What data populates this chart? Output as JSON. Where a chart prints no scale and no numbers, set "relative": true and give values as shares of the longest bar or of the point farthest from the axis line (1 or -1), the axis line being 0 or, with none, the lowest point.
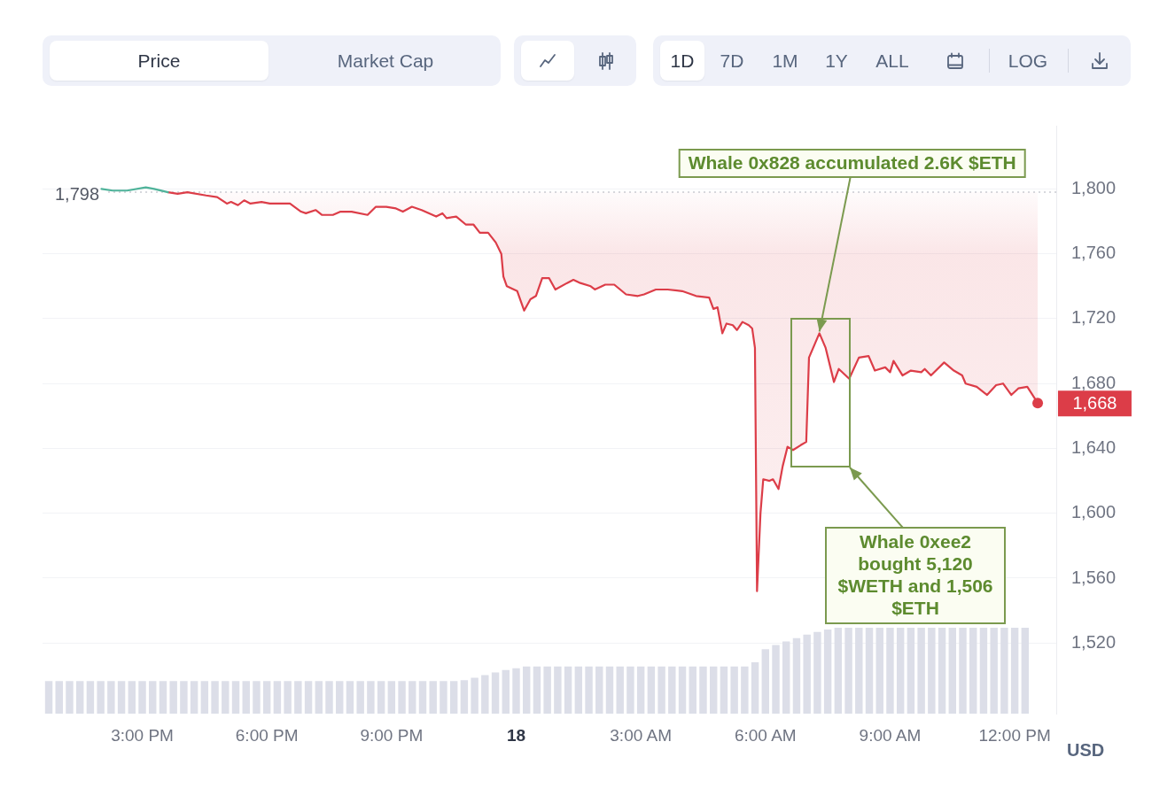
{
  "chart_data": [
    {
      "type": "line",
      "ylabel": "USD",
      "series": [
        {
          "color": "#4fb39a",
          "x": [
            "--08-17T14:01",
            "--08-17T14:17",
            "--08-17T14:38",
            "--08-17T15:05",
            "--08-17T15:17",
            "--08-17T15:37"
          ],
          "values": [
            1800,
            1799,
            1799,
            1801,
            1800,
            1798
          ]
        },
        {
          "type": "line",
          "color": "#dc3d48",
          "x": [
            "--08-17T15:37",
            "--08-17T15:51",
            "--08-17T16:05",
            "--08-17T16:32",
            "--08-17T16:48",
            "--08-17T17:02",
            "--08-17T17:08",
            "--08-17T17:18",
            "--08-17T17:27",
            "--08-17T17:36",
            "--08-17T17:52",
            "--08-17T18:04",
            "--08-17T18:33",
            "--08-17T18:49",
            "--08-17T18:56",
            "--08-17T19:10",
            "--08-17T19:19",
            "--08-17T19:35",
            "--08-17T19:46",
            "--08-17T20:02",
            "--08-17T20:25",
            "--08-17T20:37",
            "--08-17T20:52",
            "--08-17T21:06",
            "--08-17T21:16",
            "--08-17T21:29",
            "--08-17T21:43",
            "--08-17T22:04",
            "--08-17T22:13",
            "--08-17T22:19",
            "--08-17T22:33",
            "--08-17T22:47",
            "--08-17T22:58",
            "--08-17T23:07",
            "--08-17T23:19",
            "--08-17T23:30",
            "--08-17T23:38",
            "--08-17T23:41",
            "--08-17T23:46",
            "--08-18T00:01",
            "--08-18T00:11",
            "--08-18T00:20",
            "--08-18T00:28",
            "--08-18T00:37",
            "--08-18T00:47",
            "--08-18T00:56",
            "--08-18T01:13",
            "--08-18T01:22",
            "--08-18T01:32",
            "--08-18T01:47",
            "--08-18T01:53",
            "--08-18T02:08",
            "--08-18T02:21",
            "--08-18T02:38",
            "--08-18T02:55",
            "--08-18T03:04",
            "--08-18T03:21",
            "--08-18T03:38",
            "--08-18T03:59",
            "--08-18T04:19",
            "--08-18T04:38",
            "--08-18T04:44",
            "--08-18T04:50",
            "--08-18T04:57",
            "--08-18T05:03",
            "--08-18T05:12",
            "--08-18T05:18",
            "--08-18T05:26",
            "--08-18T05:35",
            "--08-18T05:40",
            "--08-18T05:44",
            "--08-18T05:47",
            "--08-18T05:52",
            "--08-18T05:56",
            "--08-18T06:05",
            "--08-18T06:10",
            "--08-18T06:18",
            "--08-18T06:24",
            "--08-18T06:31",
            "--08-18T06:39",
            "--08-18T06:50",
            "--08-18T06:58",
            "--08-18T07:02",
            "--08-18T07:11",
            "--08-18T07:17",
            "--08-18T07:26",
            "--08-18T07:38",
            "--08-18T07:45",
            "--08-18T08:00",
            "--08-18T08:14",
            "--08-18T08:28",
            "--08-18T08:37",
            "--08-18T08:52",
            "--08-18T08:59",
            "--08-18T09:04",
            "--08-18T09:17",
            "--08-18T09:29",
            "--08-18T09:44",
            "--08-18T09:49",
            "--08-18T09:58",
            "--08-18T10:17",
            "--08-18T10:31",
            "--08-18T10:43",
            "--08-18T10:48",
            "--08-18T11:04",
            "--08-18T11:19",
            "--08-18T11:32",
            "--08-18T11:42",
            "--08-18T11:54",
            "--08-18T12:04",
            "--08-18T12:17",
            "--08-18T12:32"
          ],
          "values": [
            1798,
            1797,
            1798,
            1796,
            1795,
            1791,
            1792,
            1790,
            1793,
            1791,
            1792,
            1791,
            1791,
            1786,
            1785,
            1787,
            1784,
            1784,
            1786,
            1786,
            1784,
            1789,
            1789,
            1788,
            1786,
            1789,
            1787,
            1783,
            1785,
            1782,
            1783,
            1778,
            1778,
            1773,
            1773,
            1767,
            1760,
            1746,
            1740,
            1737,
            1725,
            1732,
            1734,
            1745,
            1745,
            1738,
            1742,
            1744,
            1742,
            1740,
            1738,
            1741,
            1741,
            1735,
            1734,
            1735,
            1738,
            1738,
            1737,
            1734,
            1733,
            1726,
            1727,
            1711,
            1717,
            1716,
            1713,
            1718,
            1716,
            1714,
            1702,
            1552,
            1600,
            1621,
            1620,
            1621,
            1615,
            1629,
            1641,
            1639,
            1642,
            1644,
            1696,
            1705,
            1711,
            1702,
            1681,
            1689,
            1683,
            1696,
            1697,
            1688,
            1690,
            1687,
            1694,
            1685,
            1688,
            1687,
            1689,
            1685,
            1693,
            1688,
            1685,
            1680,
            1678,
            1673,
            1679,
            1680,
            1673,
            1677,
            1678,
            1668
          ],
          "lower": [
            1798,
            1797,
            1798,
            1796,
            1795,
            1791,
            1792,
            1790,
            1793,
            1791,
            1792,
            1791,
            1791,
            1786,
            1785,
            1787,
            1784,
            1784,
            1786,
            1786,
            1784,
            1789,
            1789,
            1788,
            1786,
            1789,
            1787,
            1783,
            1785,
            1782,
            1783,
            1778,
            1778,
            1773,
            1773,
            1767,
            1760,
            1746,
            1740,
            1737,
            1725,
            1732,
            1734,
            1745,
            1745,
            1738,
            1742,
            1744,
            1742,
            1740,
            1738,
            1741,
            1741,
            1735,
            1734,
            1735,
            1738,
            1738,
            1737,
            1734,
            1733,
            1726,
            1727,
            1711,
            1717,
            1716,
            1713,
            1718,
            1716,
            1714,
            1702,
            1552,
            1600,
            1621,
            1620,
            1621,
            1615,
            1629,
            1641,
            1639,
            1642,
            1644,
            1696,
            1705,
            1711,
            1702,
            1681,
            1689,
            1683,
            1696,
            1697,
            1688,
            1690,
            1687,
            1694,
            1685,
            1688,
            1687,
            1689,
            1685,
            1693,
            1688,
            1685,
            1680,
            1678,
            1673,
            1679,
            1680,
            1673,
            1677,
            1678,
            1668
          ],
          "upper": [
            1798,
            1798,
            1798,
            1798,
            1798,
            1798,
            1798,
            1798,
            1798,
            1798,
            1798,
            1798,
            1798,
            1798,
            1798,
            1798,
            1798,
            1798,
            1798,
            1798,
            1798,
            1798,
            1798,
            1798,
            1798,
            1798,
            1798,
            1798,
            1798,
            1798,
            1798,
            1798,
            1798,
            1798,
            1798,
            1798,
            1798,
            1798,
            1798,
            1798,
            1798,
            1798,
            1798,
            1798,
            1798,
            1798,
            1798,
            1798,
            1798,
            1798,
            1798,
            1798,
            1798,
            1798,
            1798,
            1798,
            1798,
            1798,
            1798,
            1798,
            1798,
            1798,
            1798,
            1798,
            1798,
            1798,
            1798,
            1798,
            1798,
            1798,
            1798,
            1798,
            1798,
            1798,
            1798,
            1798,
            1798,
            1798,
            1798,
            1798,
            1798,
            1798,
            1798,
            1798,
            1798,
            1798,
            1798,
            1798,
            1798,
            1798,
            1798,
            1798,
            1798,
            1798,
            1798,
            1798,
            1798,
            1798,
            1798,
            1798,
            1798,
            1798,
            1798,
            1798,
            1798,
            1798,
            1798,
            1798,
            1798,
            1798,
            1798,
            1798
          ]
        }
      ],
      "xlim": [
        "--08-17T12:36",
        "--08-18T13:00"
      ],
      "ylim": [
        1477,
        1839
      ],
      "yticks": [
        {
          "value": 1520,
          "label": "1,520"
        },
        {
          "value": 1560,
          "label": "1,560"
        },
        {
          "value": 1600,
          "label": "1,600"
        },
        {
          "value": 1640,
          "label": "1,640"
        },
        {
          "value": 1680,
          "label": "1,680"
        },
        {
          "value": 1720,
          "label": "1,720"
        },
        {
          "value": 1760,
          "label": "1,760"
        },
        {
          "value": 1800,
          "label": "1,800"
        }
      ],
      "grid": "y",
      "tick_labels": "y",
      "ref_lines": [
        {
          "axis": "y",
          "value": 1798,
          "label": "1,798",
          "color": "#c9cbd2",
          "line_style": "dotted"
        }
      ],
      "annotations": [
        "Price",
        "Market Cap",
        "1D",
        "7D",
        "1M",
        "1Y",
        "ALL",
        "LOG",
        "Whale 0xee2 bought 5,120 $WETH and 1,506 $ETH",
        {
          "text": "1,668",
          "x": "--08-18T12:32",
          "y": 1668
        },
        {
          "text": "Whale 0x828 accumulated 2.6K $ETH",
          "x": "--08-18T07:17",
          "y": 1711
        }
      ]
    },
    {
      "type": "bar",
      "relative": true,
      "color": "#dcdee8",
      "x": [
        "--08-17T12:45",
        "--08-17T13:00",
        "--08-17T13:15",
        "--08-17T13:30",
        "--08-17T13:45",
        "--08-17T14:00",
        "--08-17T14:15",
        "--08-17T14:30",
        "--08-17T14:45",
        "--08-17T15:00",
        "--08-17T15:15",
        "--08-17T15:30",
        "--08-17T15:45",
        "--08-17T16:00",
        "--08-17T16:15",
        "--08-17T16:30",
        "--08-17T16:45",
        "--08-17T17:00",
        "--08-17T17:15",
        "--08-17T17:30",
        "--08-17T17:45",
        "--08-17T18:00",
        "--08-17T18:15",
        "--08-17T18:30",
        "--08-17T18:45",
        "--08-17T19:00",
        "--08-17T19:15",
        "--08-17T19:30",
        "--08-17T19:45",
        "--08-17T20:00",
        "--08-17T20:15",
        "--08-17T20:30",
        "--08-17T20:45",
        "--08-17T21:00",
        "--08-17T21:15",
        "--08-17T21:30",
        "--08-17T21:45",
        "--08-17T22:00",
        "--08-17T22:15",
        "--08-17T22:30",
        "--08-17T22:45",
        "--08-17T23:00",
        "--08-17T23:15",
        "--08-17T23:30",
        "--08-17T23:45",
        "--08-18T00:00",
        "--08-18T00:15",
        "--08-18T00:30",
        "--08-18T00:45",
        "--08-18T01:00",
        "--08-18T01:15",
        "--08-18T01:30",
        "--08-18T01:45",
        "--08-18T02:00",
        "--08-18T02:15",
        "--08-18T02:30",
        "--08-18T02:45",
        "--08-18T03:00",
        "--08-18T03:15",
        "--08-18T03:30",
        "--08-18T03:45",
        "--08-18T04:00",
        "--08-18T04:15",
        "--08-18T04:30",
        "--08-18T04:45",
        "--08-18T05:00",
        "--08-18T05:15",
        "--08-18T05:30",
        "--08-18T05:45",
        "--08-18T06:00",
        "--08-18T06:15",
        "--08-18T06:30",
        "--08-18T06:45",
        "--08-18T07:00",
        "--08-18T07:15",
        "--08-18T07:30",
        "--08-18T07:45",
        "--08-18T08:00",
        "--08-18T08:15",
        "--08-18T08:30",
        "--08-18T08:45",
        "--08-18T09:00",
        "--08-18T09:15",
        "--08-18T09:30",
        "--08-18T09:45",
        "--08-18T10:00",
        "--08-18T10:15",
        "--08-18T10:30",
        "--08-18T10:45",
        "--08-18T11:00",
        "--08-18T11:15",
        "--08-18T11:30",
        "--08-18T11:45",
        "--08-18T12:00",
        "--08-18T12:15"
      ],
      "values": [
        0.38,
        0.38,
        0.38,
        0.38,
        0.38,
        0.38,
        0.38,
        0.38,
        0.38,
        0.38,
        0.38,
        0.38,
        0.38,
        0.38,
        0.38,
        0.38,
        0.38,
        0.38,
        0.38,
        0.38,
        0.38,
        0.38,
        0.38,
        0.38,
        0.38,
        0.38,
        0.38,
        0.38,
        0.38,
        0.38,
        0.38,
        0.38,
        0.38,
        0.38,
        0.38,
        0.38,
        0.38,
        0.38,
        0.38,
        0.38,
        0.39,
        0.42,
        0.45,
        0.48,
        0.51,
        0.53,
        0.55,
        0.55,
        0.55,
        0.55,
        0.55,
        0.55,
        0.55,
        0.55,
        0.55,
        0.55,
        0.55,
        0.55,
        0.55,
        0.55,
        0.55,
        0.55,
        0.55,
        0.55,
        0.55,
        0.55,
        0.55,
        0.55,
        0.6,
        0.75,
        0.8,
        0.84,
        0.88,
        0.92,
        0.95,
        0.98,
        1,
        1,
        1,
        1,
        1,
        1,
        1,
        1,
        1,
        1,
        1,
        1,
        1,
        1,
        1,
        1,
        1,
        1,
        1
      ],
      "xlim": [
        "--08-17T12:36",
        "--08-18T13:00"
      ],
      "xticks": [
        {
          "value": "--08-17T15:00",
          "label": "3:00 PM"
        },
        {
          "value": "--08-17T18:00",
          "label": "6:00 PM"
        },
        {
          "value": "--08-17T21:00",
          "label": "9:00 PM"
        },
        {
          "value": "--08-18T00:00",
          "label": "18"
        },
        {
          "value": "--08-18T03:00",
          "label": "3:00 AM"
        },
        {
          "value": "--08-18T06:00",
          "label": "6:00 AM"
        },
        {
          "value": "--08-18T09:00",
          "label": "9:00 AM"
        },
        {
          "value": "--08-18T12:00",
          "label": "12:00 PM"
        }
      ],
      "tick_labels": "x"
    }
  ]
}
